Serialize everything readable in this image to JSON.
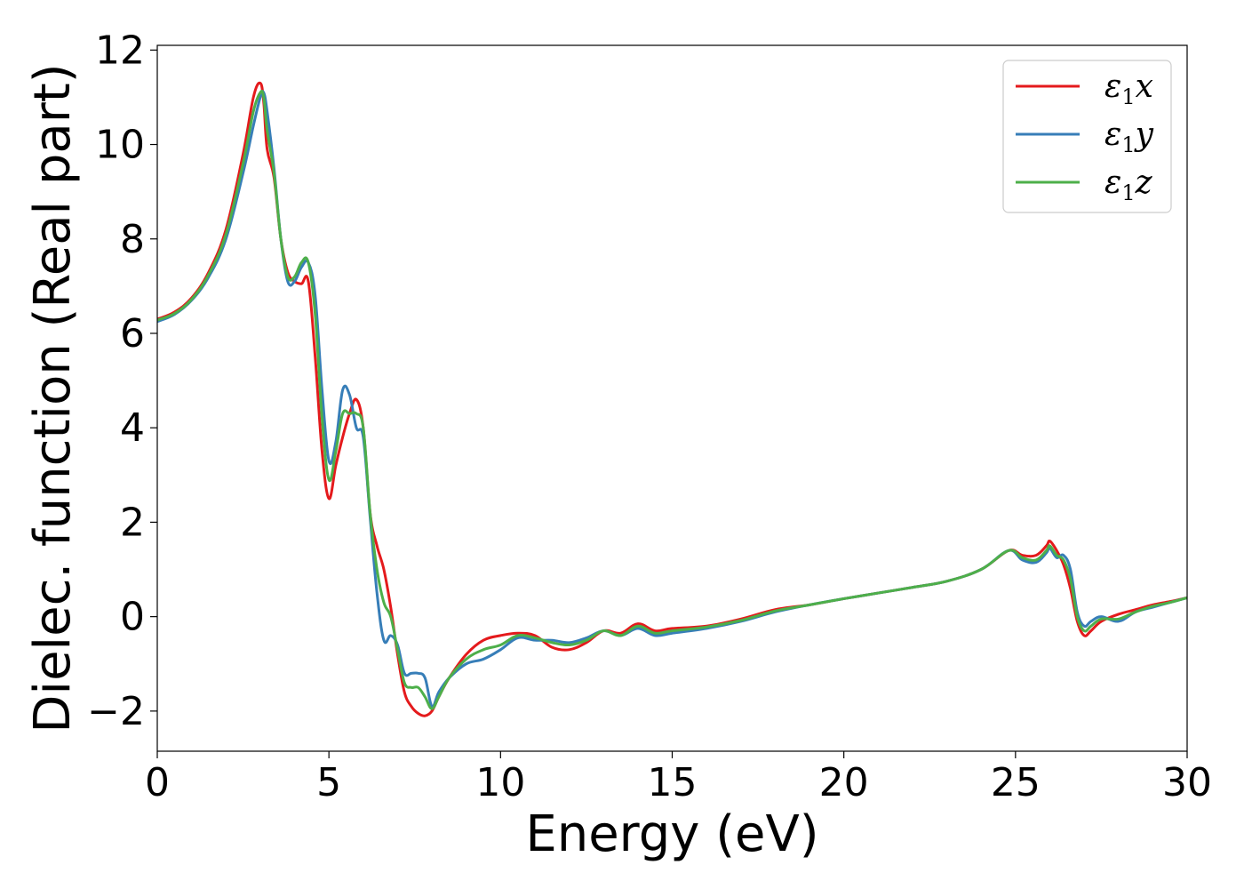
{
  "chart_data": {
    "type": "line",
    "title": "",
    "xlabel": "Energy (eV)",
    "ylabel": "Dielec. function (Real part)",
    "xlim": [
      0,
      30
    ],
    "ylim": [
      -2.85,
      12.1
    ],
    "xticks": [
      0,
      5,
      10,
      15,
      20,
      25,
      30
    ],
    "xtick_labels": [
      "0",
      "5",
      "10",
      "15",
      "20",
      "25",
      "30"
    ],
    "yticks": [
      -2,
      0,
      2,
      4,
      6,
      8,
      10,
      12
    ],
    "ytick_labels": [
      "−2",
      "0",
      "2",
      "4",
      "6",
      "8",
      "10",
      "12"
    ],
    "grid": false,
    "legend_position": "top-right",
    "series": [
      {
        "name": "ε1x",
        "legend_symbol": "ε",
        "legend_sub": "1",
        "legend_var": "x",
        "color": "#e41a1c",
        "x": [
          0,
          0.5,
          1.0,
          1.5,
          2.0,
          2.5,
          2.8,
          3.0,
          3.1,
          3.2,
          3.4,
          3.6,
          3.8,
          4.0,
          4.2,
          4.4,
          4.6,
          4.8,
          5.0,
          5.2,
          5.4,
          5.6,
          5.8,
          6.0,
          6.2,
          6.4,
          6.6,
          6.8,
          7.0,
          7.2,
          7.4,
          7.6,
          7.8,
          8.0,
          8.2,
          8.5,
          9.0,
          9.5,
          10.0,
          10.5,
          11.0,
          11.5,
          12.0,
          12.5,
          13.0,
          13.5,
          14.0,
          14.5,
          15.0,
          16.0,
          17.0,
          18.0,
          19.0,
          20.0,
          21.0,
          22.0,
          23.0,
          24.0,
          24.8,
          25.2,
          25.6,
          25.9,
          26.0,
          26.2,
          26.4,
          26.6,
          26.8,
          27.0,
          27.2,
          27.5,
          28.0,
          28.5,
          29.0,
          29.5,
          30.0
        ],
        "y": [
          6.3,
          6.45,
          6.75,
          7.3,
          8.2,
          9.8,
          11.0,
          11.3,
          10.9,
          9.9,
          9.3,
          8.0,
          7.3,
          7.1,
          7.05,
          7.1,
          5.5,
          3.5,
          2.5,
          3.2,
          3.8,
          4.3,
          4.6,
          4.0,
          2.2,
          1.5,
          1.0,
          0.2,
          -0.8,
          -1.6,
          -1.9,
          -2.05,
          -2.1,
          -2.0,
          -1.7,
          -1.3,
          -0.8,
          -0.5,
          -0.4,
          -0.35,
          -0.4,
          -0.65,
          -0.7,
          -0.55,
          -0.3,
          -0.35,
          -0.15,
          -0.3,
          -0.25,
          -0.2,
          -0.05,
          0.15,
          0.25,
          0.38,
          0.5,
          0.62,
          0.75,
          1.0,
          1.4,
          1.3,
          1.3,
          1.5,
          1.6,
          1.4,
          1.1,
          0.6,
          -0.1,
          -0.4,
          -0.3,
          -0.1,
          0.05,
          0.15,
          0.25,
          0.32,
          0.4
        ]
      },
      {
        "name": "ε1y",
        "legend_symbol": "ε",
        "legend_sub": "1",
        "legend_var": "y",
        "color": "#377eb8",
        "x": [
          0,
          0.5,
          1.0,
          1.5,
          2.0,
          2.5,
          2.8,
          3.0,
          3.1,
          3.2,
          3.4,
          3.6,
          3.8,
          4.0,
          4.2,
          4.4,
          4.6,
          4.8,
          5.0,
          5.2,
          5.4,
          5.6,
          5.8,
          6.0,
          6.2,
          6.4,
          6.6,
          6.8,
          7.0,
          7.2,
          7.4,
          7.6,
          7.8,
          8.0,
          8.2,
          8.5,
          9.0,
          9.5,
          10.0,
          10.5,
          11.0,
          11.5,
          12.0,
          12.5,
          13.0,
          13.5,
          14.0,
          14.5,
          15.0,
          16.0,
          17.0,
          18.0,
          19.0,
          20.0,
          21.0,
          22.0,
          23.0,
          24.0,
          24.8,
          25.2,
          25.6,
          25.9,
          26.0,
          26.2,
          26.4,
          26.6,
          26.8,
          27.0,
          27.2,
          27.5,
          28.0,
          28.5,
          29.0,
          29.5,
          30.0
        ],
        "y": [
          6.25,
          6.4,
          6.7,
          7.2,
          8.0,
          9.4,
          10.4,
          11.0,
          11.1,
          10.7,
          9.5,
          8.0,
          7.1,
          7.1,
          7.4,
          7.5,
          6.8,
          4.8,
          3.3,
          3.7,
          4.8,
          4.7,
          4.0,
          3.8,
          2.1,
          0.5,
          -0.5,
          -0.4,
          -0.6,
          -1.2,
          -1.2,
          -1.2,
          -1.3,
          -1.9,
          -1.6,
          -1.3,
          -1.0,
          -0.9,
          -0.7,
          -0.45,
          -0.5,
          -0.5,
          -0.55,
          -0.45,
          -0.3,
          -0.4,
          -0.25,
          -0.4,
          -0.35,
          -0.25,
          -0.1,
          0.1,
          0.25,
          0.38,
          0.5,
          0.62,
          0.75,
          1.0,
          1.4,
          1.2,
          1.15,
          1.35,
          1.45,
          1.25,
          1.3,
          1.0,
          0.1,
          -0.2,
          -0.1,
          0.0,
          -0.1,
          0.1,
          0.2,
          0.3,
          0.4
        ]
      },
      {
        "name": "ε1z",
        "legend_symbol": "ε",
        "legend_sub": "1",
        "legend_var": "z",
        "color": "#4daf4a",
        "x": [
          0,
          0.5,
          1.0,
          1.5,
          2.0,
          2.5,
          2.8,
          3.0,
          3.1,
          3.2,
          3.4,
          3.6,
          3.8,
          4.0,
          4.2,
          4.4,
          4.6,
          4.8,
          5.0,
          5.2,
          5.4,
          5.6,
          5.8,
          6.0,
          6.2,
          6.4,
          6.6,
          6.8,
          7.0,
          7.2,
          7.4,
          7.6,
          7.8,
          8.0,
          8.2,
          8.5,
          9.0,
          9.5,
          10.0,
          10.5,
          11.0,
          11.5,
          12.0,
          12.5,
          13.0,
          13.5,
          14.0,
          14.5,
          15.0,
          16.0,
          17.0,
          18.0,
          19.0,
          20.0,
          21.0,
          22.0,
          23.0,
          24.0,
          24.8,
          25.2,
          25.6,
          25.9,
          26.0,
          26.2,
          26.4,
          26.6,
          26.8,
          27.0,
          27.2,
          27.5,
          28.0,
          28.5,
          29.0,
          29.5,
          30.0
        ],
        "y": [
          6.28,
          6.42,
          6.72,
          7.25,
          8.1,
          9.6,
          10.7,
          11.1,
          11.0,
          10.3,
          9.4,
          8.0,
          7.2,
          7.2,
          7.5,
          7.5,
          6.4,
          4.2,
          2.9,
          3.5,
          4.3,
          4.3,
          4.3,
          4.0,
          2.2,
          1.0,
          0.3,
          0.0,
          -0.7,
          -1.4,
          -1.5,
          -1.5,
          -1.7,
          -1.95,
          -1.7,
          -1.3,
          -0.9,
          -0.7,
          -0.6,
          -0.4,
          -0.45,
          -0.55,
          -0.6,
          -0.5,
          -0.3,
          -0.4,
          -0.2,
          -0.35,
          -0.3,
          -0.22,
          -0.08,
          0.12,
          0.25,
          0.38,
          0.5,
          0.62,
          0.75,
          1.0,
          1.4,
          1.25,
          1.2,
          1.4,
          1.5,
          1.3,
          1.2,
          0.8,
          0.0,
          -0.3,
          -0.2,
          -0.05,
          -0.05,
          0.1,
          0.22,
          0.3,
          0.4
        ]
      }
    ]
  }
}
